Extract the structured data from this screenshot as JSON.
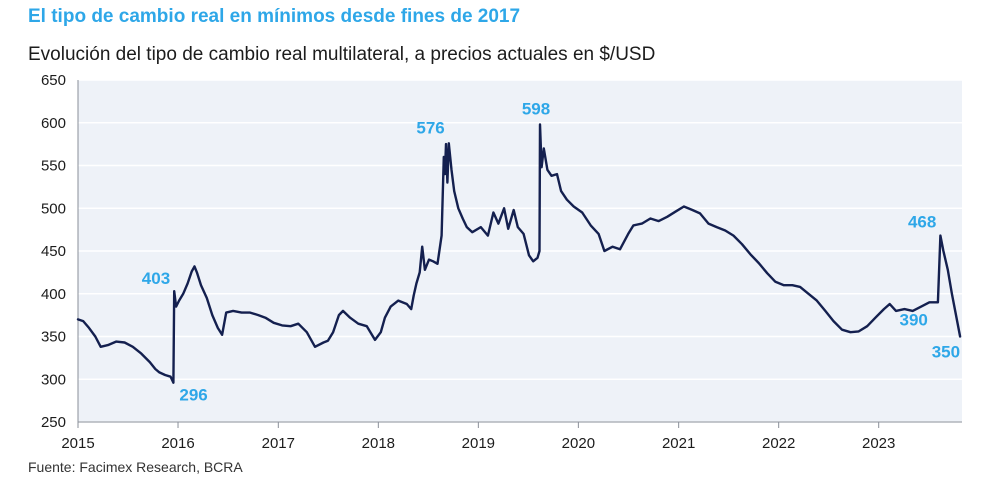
{
  "header": {
    "title": "El tipo de cambio real en mínimos desde fines de 2017",
    "subtitle": "Evolución del tipo de cambio real multilateral, a precios actuales en $/USD"
  },
  "footer": {
    "source": "Fuente: Facimex Research, BCRA"
  },
  "colors": {
    "accent": "#2ea7e8",
    "line": "#14204f",
    "plot_background": "#eef2f8",
    "grid": "#ffffff"
  },
  "chart_data": {
    "type": "line",
    "x_type": "date",
    "ylim": [
      250,
      650
    ],
    "xlim": [
      "2015-01-01",
      "2023-11-01"
    ],
    "y_ticks": [
      250,
      300,
      350,
      400,
      450,
      500,
      550,
      600,
      650
    ],
    "x_ticks": [
      {
        "label": "2015",
        "date": "2015-01-01"
      },
      {
        "label": "2016",
        "date": "2016-01-01"
      },
      {
        "label": "2017",
        "date": "2017-01-01"
      },
      {
        "label": "2018",
        "date": "2018-01-01"
      },
      {
        "label": "2019",
        "date": "2019-01-01"
      },
      {
        "label": "2020",
        "date": "2020-01-01"
      },
      {
        "label": "2021",
        "date": "2021-01-01"
      },
      {
        "label": "2022",
        "date": "2022-01-01"
      },
      {
        "label": "2023",
        "date": "2023-01-01"
      }
    ],
    "grid": "horizontal",
    "legend": "none",
    "series": [
      {
        "points": [
          [
            "2015-01-01",
            370
          ],
          [
            "2015-01-20",
            368
          ],
          [
            "2015-02-10",
            360
          ],
          [
            "2015-03-05",
            350
          ],
          [
            "2015-03-25",
            338
          ],
          [
            "2015-04-20",
            340
          ],
          [
            "2015-05-20",
            344
          ],
          [
            "2015-06-20",
            343
          ],
          [
            "2015-07-20",
            338
          ],
          [
            "2015-08-20",
            330
          ],
          [
            "2015-09-20",
            320
          ],
          [
            "2015-10-10",
            312
          ],
          [
            "2015-10-25",
            308
          ],
          [
            "2015-11-15",
            305
          ],
          [
            "2015-12-05",
            303
          ],
          [
            "2015-12-15",
            296
          ],
          [
            "2015-12-18",
            403
          ],
          [
            "2015-12-25",
            385
          ],
          [
            "2016-01-05",
            392
          ],
          [
            "2016-01-20",
            400
          ],
          [
            "2016-02-05",
            412
          ],
          [
            "2016-02-20",
            426
          ],
          [
            "2016-03-01",
            432
          ],
          [
            "2016-03-10",
            425
          ],
          [
            "2016-03-25",
            410
          ],
          [
            "2016-04-15",
            395
          ],
          [
            "2016-05-05",
            375
          ],
          [
            "2016-05-25",
            360
          ],
          [
            "2016-06-10",
            352
          ],
          [
            "2016-06-25",
            378
          ],
          [
            "2016-07-20",
            380
          ],
          [
            "2016-08-20",
            378
          ],
          [
            "2016-09-20",
            378
          ],
          [
            "2016-10-20",
            375
          ],
          [
            "2016-11-15",
            372
          ],
          [
            "2016-12-15",
            366
          ],
          [
            "2017-01-15",
            363
          ],
          [
            "2017-02-15",
            362
          ],
          [
            "2017-03-15",
            365
          ],
          [
            "2017-04-15",
            355
          ],
          [
            "2017-05-15",
            338
          ],
          [
            "2017-06-15",
            343
          ],
          [
            "2017-07-01",
            345
          ],
          [
            "2017-07-20",
            355
          ],
          [
            "2017-08-10",
            375
          ],
          [
            "2017-08-25",
            380
          ],
          [
            "2017-09-20",
            372
          ],
          [
            "2017-10-20",
            365
          ],
          [
            "2017-11-20",
            362
          ],
          [
            "2017-12-20",
            346
          ],
          [
            "2018-01-10",
            355
          ],
          [
            "2018-01-25",
            372
          ],
          [
            "2018-02-15",
            385
          ],
          [
            "2018-03-15",
            392
          ],
          [
            "2018-04-15",
            388
          ],
          [
            "2018-05-01",
            382
          ],
          [
            "2018-05-10",
            398
          ],
          [
            "2018-05-20",
            412
          ],
          [
            "2018-06-01",
            425
          ],
          [
            "2018-06-10",
            455
          ],
          [
            "2018-06-20",
            428
          ],
          [
            "2018-07-05",
            440
          ],
          [
            "2018-07-20",
            438
          ],
          [
            "2018-08-05",
            435
          ],
          [
            "2018-08-20",
            468
          ],
          [
            "2018-08-28",
            560
          ],
          [
            "2018-09-01",
            540
          ],
          [
            "2018-09-05",
            575
          ],
          [
            "2018-09-10",
            530
          ],
          [
            "2018-09-15",
            576
          ],
          [
            "2018-09-25",
            545
          ],
          [
            "2018-10-05",
            520
          ],
          [
            "2018-10-20",
            500
          ],
          [
            "2018-11-05",
            488
          ],
          [
            "2018-11-20",
            478
          ],
          [
            "2018-12-10",
            472
          ],
          [
            "2019-01-10",
            478
          ],
          [
            "2019-02-05",
            468
          ],
          [
            "2019-02-25",
            495
          ],
          [
            "2019-03-15",
            482
          ],
          [
            "2019-04-05",
            500
          ],
          [
            "2019-04-20",
            476
          ],
          [
            "2019-05-10",
            498
          ],
          [
            "2019-05-25",
            478
          ],
          [
            "2019-06-15",
            470
          ],
          [
            "2019-07-05",
            445
          ],
          [
            "2019-07-20",
            438
          ],
          [
            "2019-08-05",
            442
          ],
          [
            "2019-08-12",
            450
          ],
          [
            "2019-08-14",
            598
          ],
          [
            "2019-08-20",
            548
          ],
          [
            "2019-08-28",
            570
          ],
          [
            "2019-09-10",
            545
          ],
          [
            "2019-09-25",
            538
          ],
          [
            "2019-10-15",
            540
          ],
          [
            "2019-10-30",
            520
          ],
          [
            "2019-11-20",
            510
          ],
          [
            "2019-12-15",
            502
          ],
          [
            "2020-01-15",
            495
          ],
          [
            "2020-02-15",
            480
          ],
          [
            "2020-03-15",
            470
          ],
          [
            "2020-04-05",
            450
          ],
          [
            "2020-05-05",
            455
          ],
          [
            "2020-06-01",
            452
          ],
          [
            "2020-07-01",
            470
          ],
          [
            "2020-07-20",
            480
          ],
          [
            "2020-08-20",
            482
          ],
          [
            "2020-09-20",
            488
          ],
          [
            "2020-10-20",
            485
          ],
          [
            "2020-11-20",
            490
          ],
          [
            "2020-12-20",
            496
          ],
          [
            "2021-01-20",
            502
          ],
          [
            "2021-02-20",
            498
          ],
          [
            "2021-03-20",
            494
          ],
          [
            "2021-04-20",
            482
          ],
          [
            "2021-05-20",
            478
          ],
          [
            "2021-06-20",
            474
          ],
          [
            "2021-07-20",
            468
          ],
          [
            "2021-08-20",
            458
          ],
          [
            "2021-09-20",
            446
          ],
          [
            "2021-10-20",
            436
          ],
          [
            "2021-11-20",
            424
          ],
          [
            "2021-12-20",
            414
          ],
          [
            "2022-01-20",
            410
          ],
          [
            "2022-02-20",
            410
          ],
          [
            "2022-03-20",
            408
          ],
          [
            "2022-04-20",
            400
          ],
          [
            "2022-05-20",
            392
          ],
          [
            "2022-06-20",
            380
          ],
          [
            "2022-07-20",
            368
          ],
          [
            "2022-08-20",
            358
          ],
          [
            "2022-09-20",
            355
          ],
          [
            "2022-10-20",
            356
          ],
          [
            "2022-11-20",
            362
          ],
          [
            "2022-12-20",
            372
          ],
          [
            "2023-01-20",
            382
          ],
          [
            "2023-02-10",
            388
          ],
          [
            "2023-03-05",
            380
          ],
          [
            "2023-04-05",
            382
          ],
          [
            "2023-05-05",
            380
          ],
          [
            "2023-06-05",
            385
          ],
          [
            "2023-07-05",
            390
          ],
          [
            "2023-08-05",
            390
          ],
          [
            "2023-08-14",
            468
          ],
          [
            "2023-08-25",
            450
          ],
          [
            "2023-09-10",
            428
          ],
          [
            "2023-09-25",
            400
          ],
          [
            "2023-10-10",
            375
          ],
          [
            "2023-10-25",
            350
          ]
        ]
      }
    ],
    "annotations": [
      {
        "text": "403",
        "date": "2015-12-18",
        "value": 403
      },
      {
        "text": "296",
        "date": "2015-12-15",
        "value": 296
      },
      {
        "text": "576",
        "date": "2018-09-15",
        "value": 576
      },
      {
        "text": "598",
        "date": "2019-08-14",
        "value": 598
      },
      {
        "text": "468",
        "date": "2023-08-14",
        "value": 468
      },
      {
        "text": "390",
        "date": "2023-08-05",
        "value": 390
      },
      {
        "text": "350",
        "date": "2023-10-25",
        "value": 350
      }
    ]
  }
}
